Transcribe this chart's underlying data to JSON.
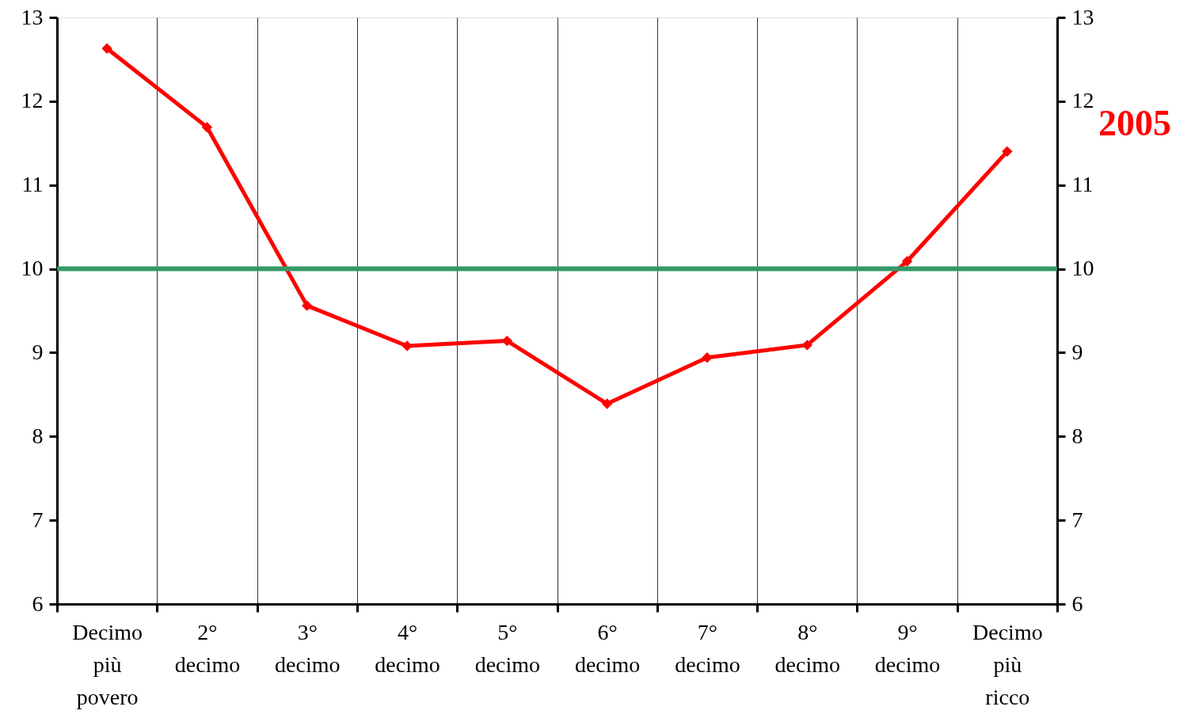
{
  "chart_data": {
    "type": "line",
    "categories": [
      "Decimo più povero",
      "2° decimo",
      "3° decimo",
      "4° decimo",
      "5° decimo",
      "6° decimo",
      "7° decimo",
      "8° decimo",
      "9° decimo",
      "Decimo più ricco"
    ],
    "series": [
      {
        "name": "2005",
        "color": "#ff0000",
        "values": [
          12.63,
          11.69,
          9.56,
          9.08,
          9.14,
          8.39,
          8.94,
          9.09,
          10.09,
          11.4
        ]
      }
    ],
    "ylim": [
      6,
      13
    ],
    "yticks": [
      6,
      7,
      8,
      9,
      10,
      11,
      12,
      13
    ],
    "y2lim": [
      6,
      13
    ],
    "y2ticks": [
      6,
      7,
      8,
      9,
      10,
      11,
      12,
      13
    ],
    "ref_lines": [
      {
        "axis": "y",
        "value": 10,
        "color": "#339966"
      }
    ],
    "grid": "x",
    "marker": "diamond",
    "line_style": "solid"
  }
}
